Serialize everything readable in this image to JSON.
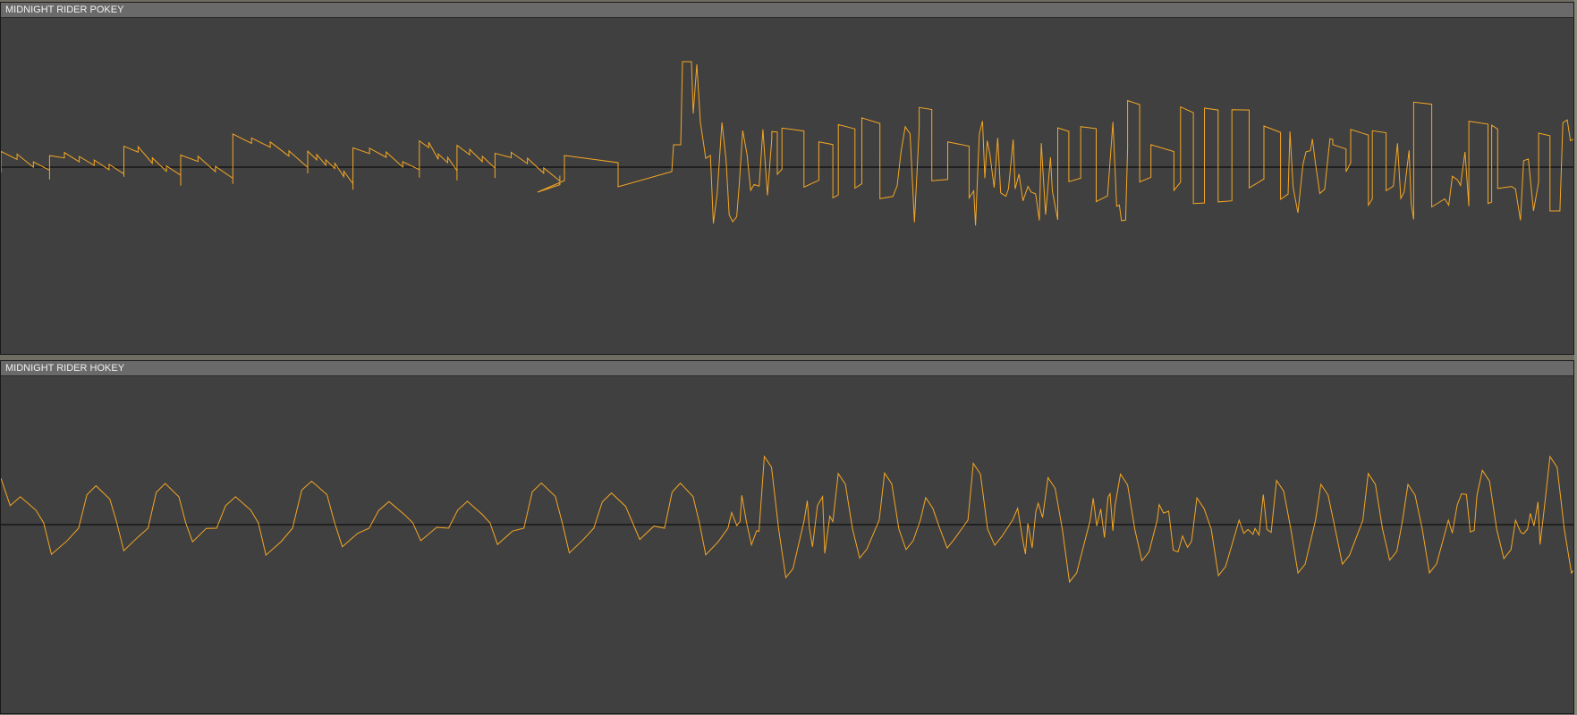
{
  "tracks": [
    {
      "title": "MIDNIGHT RIDER POKEY",
      "wave_color": "#f5a623",
      "baseline_color": "#000000"
    },
    {
      "title": "MIDNIGHT RIDER HOKEY",
      "wave_color": "#f5a623",
      "baseline_color": "#000000"
    }
  ],
  "colors": {
    "panel_bg": "#404040",
    "titlebar_bg": "#6a6a6a",
    "title_text": "#f0f0f0",
    "frame_bg": "#6f6d62"
  }
}
